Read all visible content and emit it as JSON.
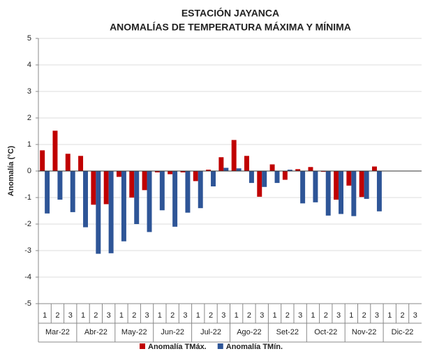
{
  "chart_data": {
    "type": "bar",
    "title": [
      "ESTACIÓN JAYANCA",
      "ANOMALÍAS DE TEMPERATURA MÁXIMA Y MÍNIMA"
    ],
    "y_label": "Anomalía (°C)",
    "categories": [
      "1",
      "2",
      "3",
      "1",
      "2",
      "3",
      "1",
      "2",
      "3",
      "1",
      "2",
      "3",
      "1",
      "2",
      "3",
      "1",
      "2",
      "3",
      "1",
      "2",
      "3",
      "1",
      "2",
      "3",
      "1",
      "2",
      "3",
      "1",
      "2",
      "3"
    ],
    "groups": [
      "Mar-22",
      "Abr-22",
      "May-22",
      "Jun-22",
      "Jul-22",
      "Ago-22",
      "Set-22",
      "Oct-22",
      "Nov-22",
      "Dic-22"
    ],
    "series": [
      {
        "name": "Anomalía TMáx.",
        "color": "#c00000",
        "values": [
          0.78,
          1.52,
          0.65,
          0.57,
          -1.27,
          -1.25,
          -0.22,
          -1.0,
          -0.72,
          -0.05,
          -0.12,
          -0.05,
          -0.38,
          0.05,
          0.52,
          1.17,
          0.57,
          -0.97,
          0.25,
          -0.33,
          0.07,
          0.15,
          -0.03,
          -1.08,
          -0.55,
          -0.98,
          0.17,
          null,
          null,
          null
        ]
      },
      {
        "name": "Anomalía TMín.",
        "color": "#2e5597",
        "values": [
          -1.6,
          -1.08,
          -1.55,
          -2.12,
          -3.12,
          -3.1,
          -2.65,
          -2.0,
          -2.3,
          -1.48,
          -2.1,
          -1.57,
          -1.4,
          -0.58,
          0.12,
          0.1,
          -0.45,
          -0.6,
          -0.45,
          0.05,
          -1.22,
          -1.18,
          -1.68,
          -1.62,
          -1.7,
          -1.05,
          -1.52,
          null,
          null,
          null
        ]
      }
    ],
    "ylim": [
      -5,
      5
    ],
    "yticks": [
      -5,
      -4,
      -3,
      -2,
      -1,
      0,
      1,
      2,
      3,
      4,
      5
    ],
    "grid": true
  }
}
